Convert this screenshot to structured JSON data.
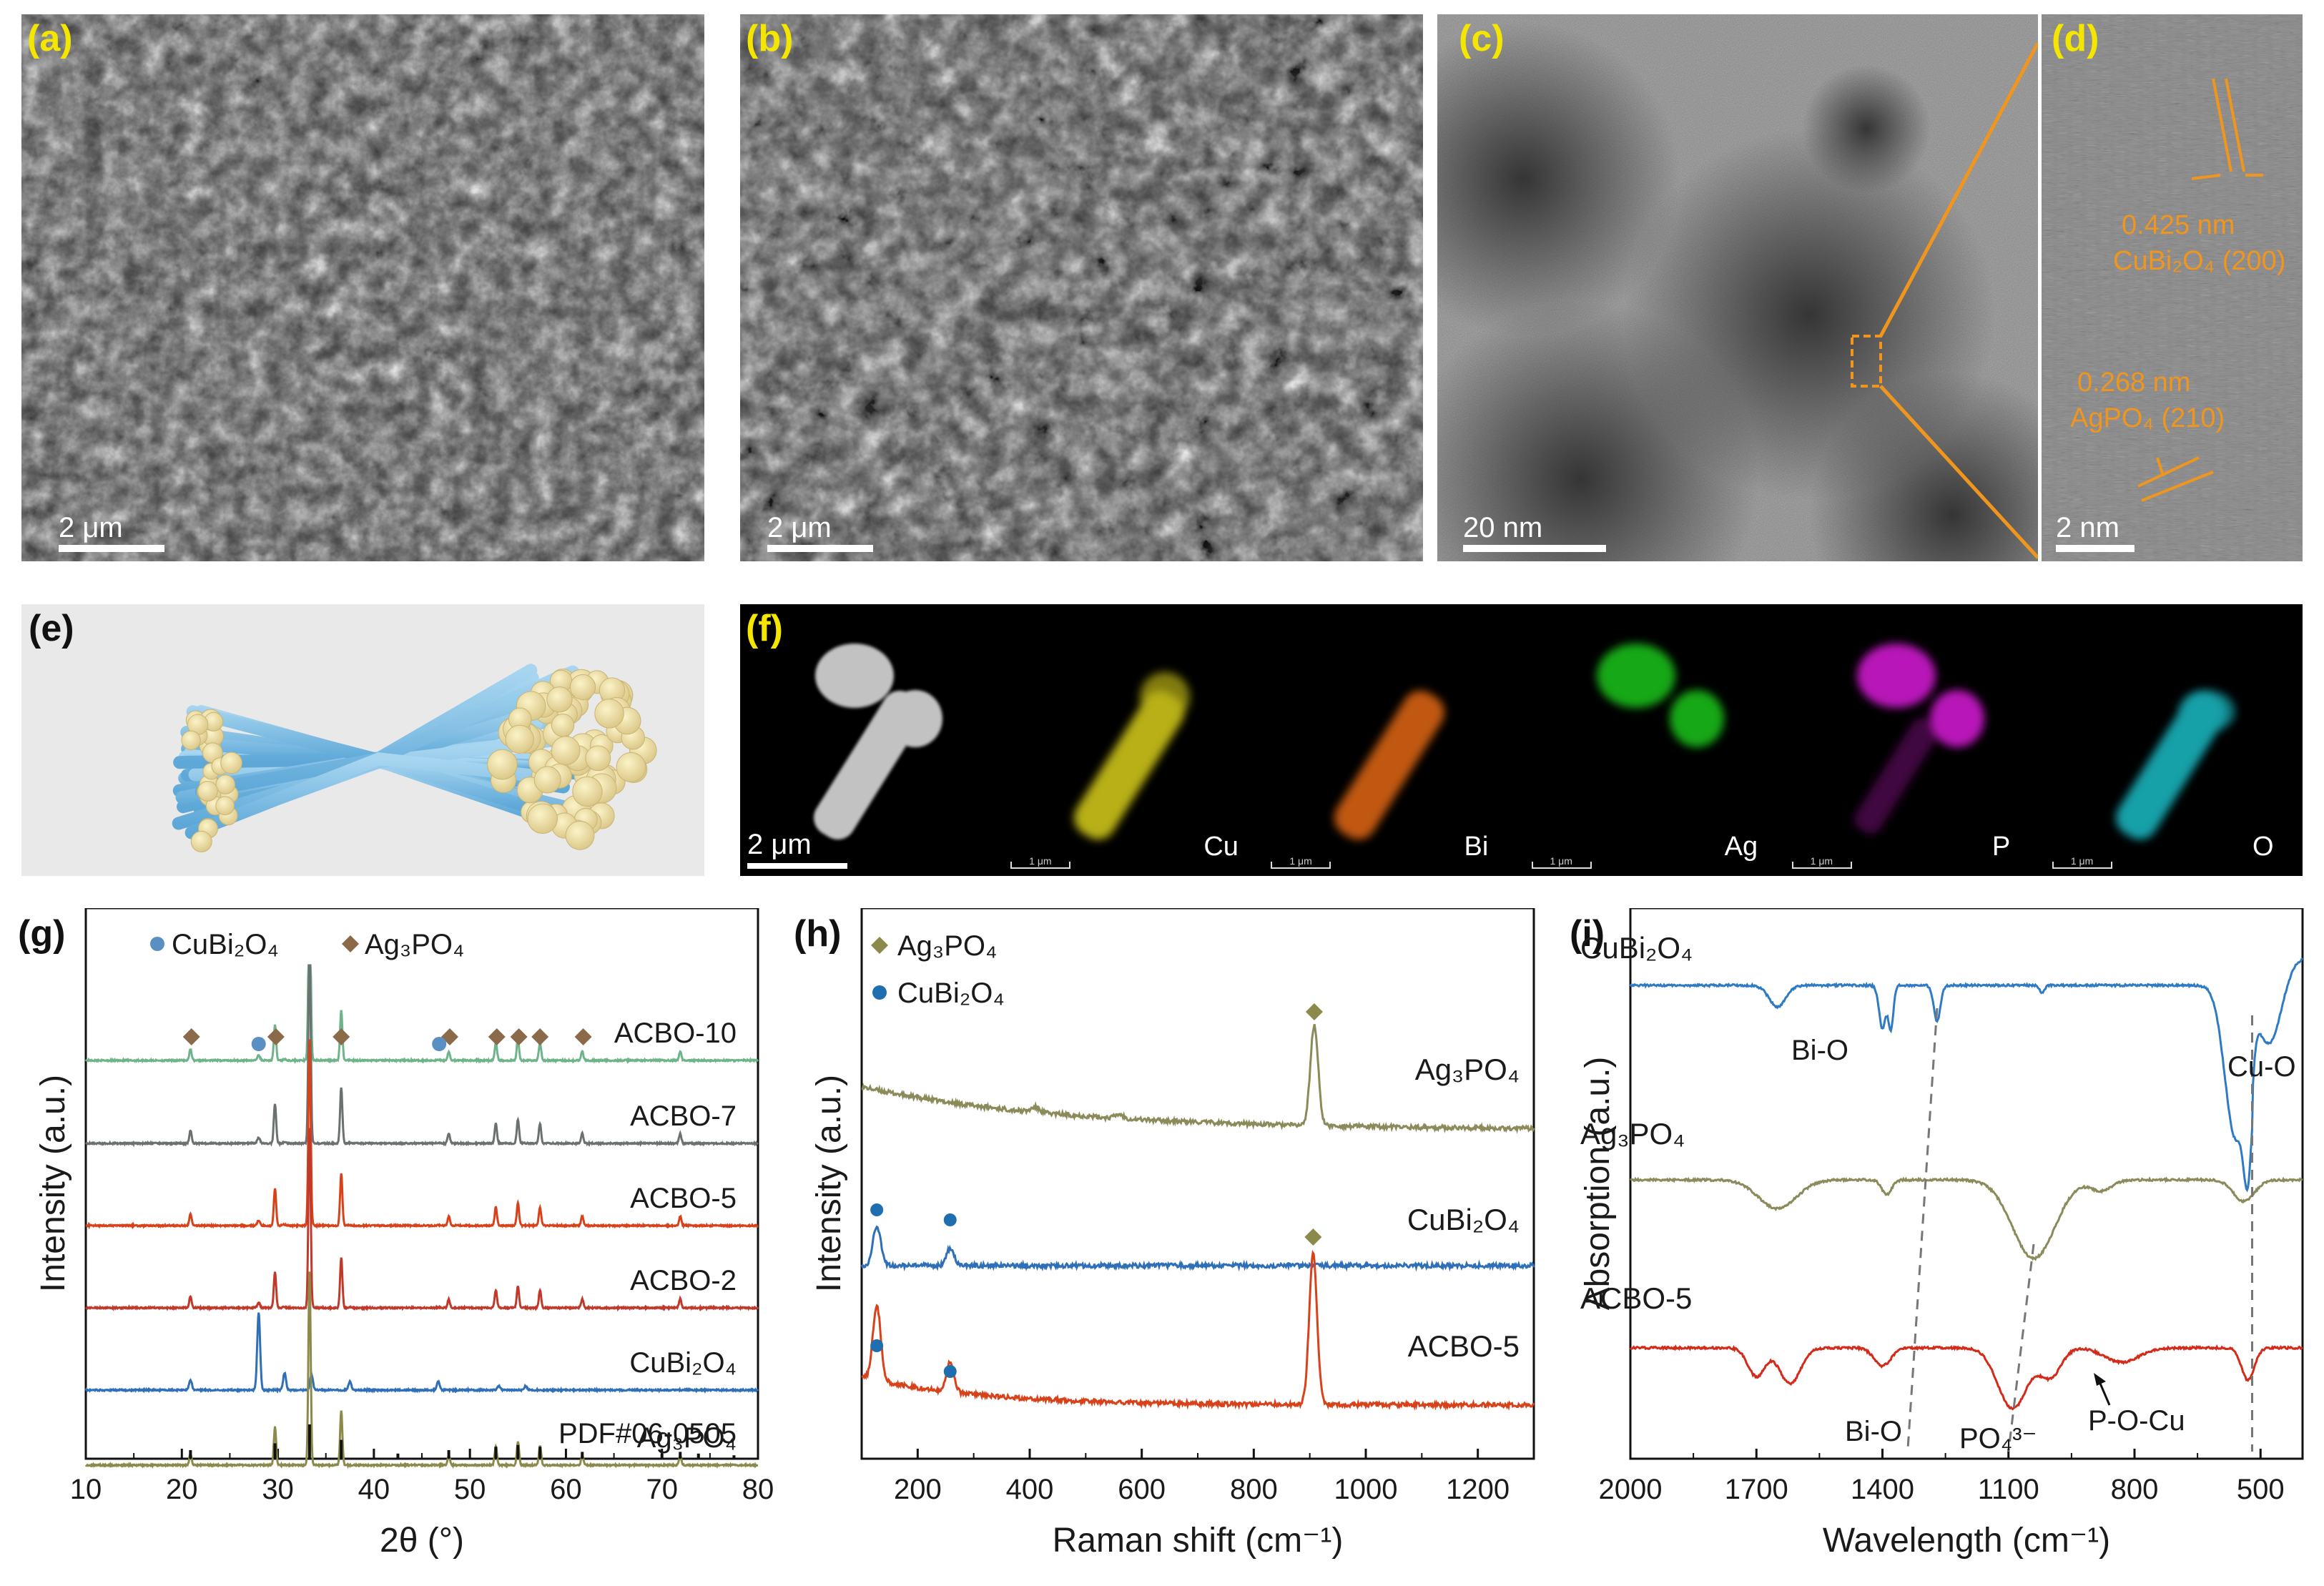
{
  "panels": {
    "a": {
      "label": "(a)",
      "scale": "2 μm"
    },
    "b": {
      "label": "(b)",
      "scale": "2 μm"
    },
    "c": {
      "label": "(c)",
      "scale": "20 nm"
    },
    "d": {
      "label": "(d)",
      "scale": "2 nm",
      "spacing1": "0.425 nm",
      "phase1": "CuBi₂O₄ (200)",
      "spacing2": "0.268 nm",
      "phase2": "AgPO₄ (210)"
    },
    "e": {
      "label": "(e)"
    },
    "f": {
      "label": "(f)",
      "scale": "2 μm",
      "tiny_scale": "1 μm",
      "maps": [
        {
          "element": "",
          "color": "#d8d8d8"
        },
        {
          "element": "Cu",
          "color": "#e6dc1e"
        },
        {
          "element": "Bi",
          "color": "#f06e14"
        },
        {
          "element": "Ag",
          "color": "#1ed21e"
        },
        {
          "element": "P",
          "color": "#e61ee6"
        },
        {
          "element": "O",
          "color": "#1ec8d2"
        }
      ]
    },
    "g": {
      "label": "(g)"
    },
    "h": {
      "label": "(h)"
    },
    "i": {
      "label": "(i)"
    }
  },
  "chart_data": [
    {
      "type": "line",
      "panel": "g",
      "xlabel": "2θ (°)",
      "ylabel": "Intensity (a.u.)",
      "xlim": [
        10,
        80
      ],
      "xticks": [
        10,
        20,
        30,
        40,
        50,
        60,
        70,
        80
      ],
      "legend": [
        {
          "name": "CuBi₂O₄",
          "marker": "circle",
          "color": "#5a8fc4"
        },
        {
          "name": "Ag₃PO₄",
          "marker": "diamond",
          "color": "#8b6a4a"
        }
      ],
      "series": [
        {
          "name": "ACBO-10",
          "color": "#6fb38a"
        },
        {
          "name": "ACBO-7",
          "color": "#6b7070"
        },
        {
          "name": "ACBO-5",
          "color": "#d8421a"
        },
        {
          "name": "ACBO-2",
          "color": "#c0392b"
        },
        {
          "name": "CuBi₂O₄",
          "color": "#2e6fb8"
        },
        {
          "name": "Ag₃PO₄",
          "color": "#8a8a4a"
        }
      ],
      "reference": {
        "name": "PDF#06-0505",
        "lines": [
          [
            20.9,
            0.25
          ],
          [
            29.7,
            0.45
          ],
          [
            33.3,
            1.0
          ],
          [
            36.6,
            0.55
          ],
          [
            42.5,
            0.15
          ],
          [
            47.8,
            0.25
          ],
          [
            52.7,
            0.35
          ],
          [
            55.0,
            0.4
          ],
          [
            57.3,
            0.35
          ],
          [
            61.7,
            0.2
          ],
          [
            70.0,
            0.15
          ],
          [
            71.9,
            0.2
          ],
          [
            73.8,
            0.15
          ],
          [
            77.5,
            0.1
          ]
        ]
      },
      "ag3po4_peaks": [
        20.9,
        29.7,
        33.3,
        36.6,
        47.8,
        52.7,
        55.0,
        57.3,
        61.7,
        71.9
      ],
      "cubi2o4_peaks": [
        20.9,
        28.0,
        30.7,
        33.5,
        37.5,
        46.7,
        53.0,
        55.8
      ],
      "markers_acbo10": {
        "diamond": [
          21.0,
          29.8,
          36.6,
          47.9,
          52.8,
          55.1,
          57.3,
          61.8
        ],
        "circle": [
          28.0,
          46.8
        ]
      }
    },
    {
      "type": "line",
      "panel": "h",
      "xlabel": "Raman shift (cm⁻¹)",
      "ylabel": "Intensity (a.u.)",
      "xlim": [
        100,
        1300
      ],
      "xticks": [
        200,
        400,
        600,
        800,
        1000,
        1200
      ],
      "legend": [
        {
          "name": "Ag₃PO₄",
          "marker": "diamond",
          "color": "#8b8a4a"
        },
        {
          "name": "CuBi₂O₄",
          "marker": "circle",
          "color": "#1f6fb0"
        }
      ],
      "series": [
        {
          "name": "Ag₃PO₄",
          "color": "#8a8a5a",
          "peaks": [
            [
              908,
              1.0
            ],
            [
              410,
              0.05
            ],
            [
              560,
              0.04
            ]
          ]
        },
        {
          "name": "CuBi₂O₄",
          "color": "#2e6fb8",
          "peaks": [
            [
              127,
              0.8
            ],
            [
              258,
              0.35
            ]
          ]
        },
        {
          "name": "ACBO-5",
          "color": "#d8421a",
          "peaks": [
            [
              127,
              0.5
            ],
            [
              258,
              0.2
            ],
            [
              906,
              1.0
            ]
          ]
        }
      ]
    },
    {
      "type": "line",
      "panel": "i",
      "xlabel": "Wavelength (cm⁻¹)",
      "ylabel": "Absorption (a.u.)",
      "xlim": [
        2000,
        400
      ],
      "xticks": [
        2000,
        1700,
        1400,
        1100,
        800,
        500
      ],
      "series": [
        {
          "name": "CuBi₂O₄",
          "color": "#2e7bc4"
        },
        {
          "name": "Ag₃PO₄",
          "color": "#8a8a5a"
        },
        {
          "name": "ACBO-5",
          "color": "#d42a1a"
        }
      ],
      "annotations": [
        "Bi-O",
        "Cu-O",
        "Bi-O",
        "PO₄³⁻",
        "P-O-Cu"
      ]
    }
  ]
}
